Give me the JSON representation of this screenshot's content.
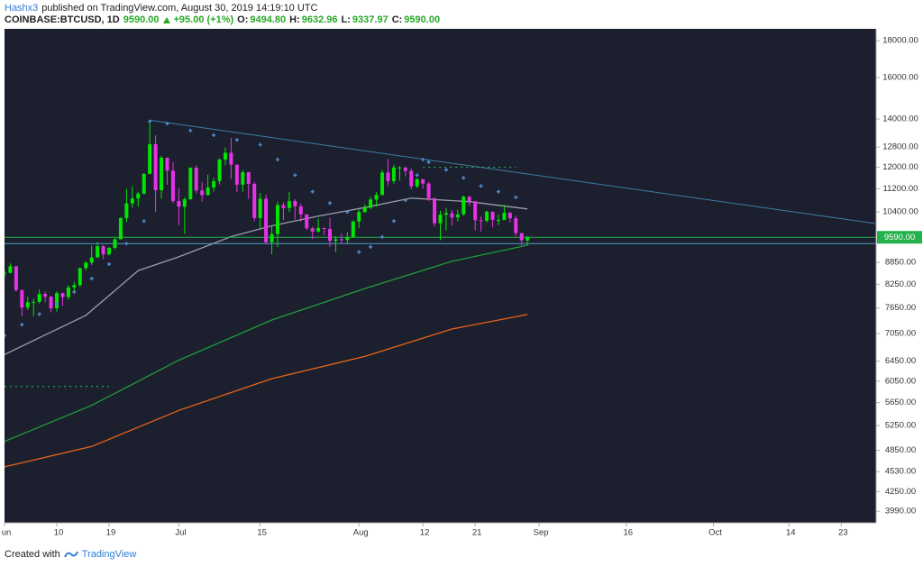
{
  "header": {
    "author": "Hashx3",
    "published": "published on TradingView.com, August 30, 2019 14:19:10 UTC",
    "symbol": "COINBASE:BTCUSD, 1D",
    "last": "9590.00",
    "change": "+95.00 (+1%)",
    "ohlc": [
      {
        "key": "O:",
        "value": "9494.80"
      },
      {
        "key": "H:",
        "value": "9632.96"
      },
      {
        "key": "L:",
        "value": "9337.97"
      },
      {
        "key": "C:",
        "value": "9590.00"
      }
    ]
  },
  "footer": {
    "created": "Created with",
    "brand": "TradingView"
  },
  "chart_data": {
    "type": "candlestick",
    "log_scale": true,
    "grid": false,
    "up_color": "#00e600",
    "down_color": "#e633e6",
    "background": "#1c1f2d",
    "xlim": [
      "2019-06-01",
      "2019-10-29"
    ],
    "ylim": [
      3845,
      18690
    ],
    "yticks": [
      {
        "value": 18000,
        "label": "18000.00"
      },
      {
        "value": 16000,
        "label": "16000.00"
      },
      {
        "value": 14000,
        "label": "14000.00"
      },
      {
        "value": 12800,
        "label": "12800.00"
      },
      {
        "value": 12000,
        "label": "12000.00"
      },
      {
        "value": 11200,
        "label": "11200.00"
      },
      {
        "value": 10400,
        "label": "10400.00"
      },
      {
        "value": 8850,
        "label": "8850.00"
      },
      {
        "value": 8250,
        "label": "8250.00"
      },
      {
        "value": 7650,
        "label": "7650.00"
      },
      {
        "value": 7050,
        "label": "7050.00"
      },
      {
        "value": 6450,
        "label": "6450.00"
      },
      {
        "value": 6050,
        "label": "6050.00"
      },
      {
        "value": 5650,
        "label": "5650.00"
      },
      {
        "value": 5250,
        "label": "5250.00"
      },
      {
        "value": 4850,
        "label": "4850.00"
      },
      {
        "value": 4530,
        "label": "4530.00"
      },
      {
        "value": 4250,
        "label": "4250.00"
      },
      {
        "value": 3990,
        "label": "3990.00"
      }
    ],
    "xticks": [
      {
        "value": "2019-06-01",
        "label": "un"
      },
      {
        "value": "2019-06-10",
        "label": "10"
      },
      {
        "value": "2019-06-19",
        "label": "19"
      },
      {
        "value": "2019-07-01",
        "label": "Jul"
      },
      {
        "value": "2019-07-15",
        "label": "15"
      },
      {
        "value": "2019-08-01",
        "label": "Aug"
      },
      {
        "value": "2019-08-12",
        "label": "12"
      },
      {
        "value": "2019-08-21",
        "label": "21"
      },
      {
        "value": "2019-09-01",
        "label": "Sep"
      },
      {
        "value": "2019-09-16",
        "label": "16"
      },
      {
        "value": "2019-10-01",
        "label": "Oct"
      },
      {
        "value": "2019-10-14",
        "label": "14"
      },
      {
        "value": "2019-10-23",
        "label": "23"
      }
    ],
    "price_line": {
      "value": 9590,
      "label": "9590.00",
      "color": "#22b14c"
    },
    "x": [
      "2019-06-01",
      "2019-06-02",
      "2019-06-03",
      "2019-06-04",
      "2019-06-05",
      "2019-06-06",
      "2019-06-07",
      "2019-06-08",
      "2019-06-09",
      "2019-06-10",
      "2019-06-11",
      "2019-06-12",
      "2019-06-13",
      "2019-06-14",
      "2019-06-15",
      "2019-06-16",
      "2019-06-17",
      "2019-06-18",
      "2019-06-19",
      "2019-06-20",
      "2019-06-21",
      "2019-06-22",
      "2019-06-23",
      "2019-06-24",
      "2019-06-25",
      "2019-06-26",
      "2019-06-27",
      "2019-06-28",
      "2019-06-29",
      "2019-06-30",
      "2019-07-01",
      "2019-07-02",
      "2019-07-03",
      "2019-07-04",
      "2019-07-05",
      "2019-07-06",
      "2019-07-07",
      "2019-07-08",
      "2019-07-09",
      "2019-07-10",
      "2019-07-11",
      "2019-07-12",
      "2019-07-13",
      "2019-07-14",
      "2019-07-15",
      "2019-07-16",
      "2019-07-17",
      "2019-07-18",
      "2019-07-19",
      "2019-07-20",
      "2019-07-21",
      "2019-07-22",
      "2019-07-23",
      "2019-07-24",
      "2019-07-25",
      "2019-07-26",
      "2019-07-27",
      "2019-07-28",
      "2019-07-29",
      "2019-07-30",
      "2019-07-31",
      "2019-08-01",
      "2019-08-02",
      "2019-08-03",
      "2019-08-04",
      "2019-08-05",
      "2019-08-06",
      "2019-08-07",
      "2019-08-08",
      "2019-08-09",
      "2019-08-10",
      "2019-08-11",
      "2019-08-12",
      "2019-08-13",
      "2019-08-14",
      "2019-08-15",
      "2019-08-16",
      "2019-08-17",
      "2019-08-18",
      "2019-08-19",
      "2019-08-20",
      "2019-08-21",
      "2019-08-22",
      "2019-08-23",
      "2019-08-24",
      "2019-08-25",
      "2019-08-26",
      "2019-08-27",
      "2019-08-28",
      "2019-08-29",
      "2019-08-30"
    ],
    "candles": [
      [
        8550,
        8620,
        8450,
        8560
      ],
      [
        8560,
        8820,
        8540,
        8740
      ],
      [
        8740,
        8750,
        8060,
        8100
      ],
      [
        8100,
        8110,
        7450,
        7660
      ],
      [
        7660,
        7930,
        7600,
        7790
      ],
      [
        7790,
        7880,
        7450,
        7800
      ],
      [
        7800,
        8110,
        7760,
        8000
      ],
      [
        8000,
        8060,
        7790,
        7930
      ],
      [
        7930,
        7950,
        7540,
        7640
      ],
      [
        7640,
        8070,
        7560,
        8020
      ],
      [
        8020,
        8030,
        7700,
        7920
      ],
      [
        7920,
        8230,
        7850,
        8170
      ],
      [
        8170,
        8320,
        8050,
        8230
      ],
      [
        8230,
        8700,
        8180,
        8690
      ],
      [
        8690,
        8880,
        8620,
        8840
      ],
      [
        8840,
        9340,
        8780,
        8990
      ],
      [
        8990,
        9450,
        8980,
        9320
      ],
      [
        9320,
        9350,
        8940,
        9080
      ],
      [
        9080,
        9300,
        9050,
        9270
      ],
      [
        9270,
        9600,
        9220,
        9530
      ],
      [
        9530,
        10230,
        9530,
        10200
      ],
      [
        10200,
        11200,
        10060,
        10690
      ],
      [
        10690,
        11300,
        10550,
        10860
      ],
      [
        10860,
        11100,
        10580,
        11030
      ],
      [
        11030,
        11780,
        11000,
        11750
      ],
      [
        11750,
        13880,
        11730,
        12920
      ],
      [
        12920,
        13290,
        10400,
        11150
      ],
      [
        11150,
        12450,
        10850,
        12370
      ],
      [
        12370,
        12380,
        11350,
        11870
      ],
      [
        11870,
        12200,
        10700,
        10770
      ],
      [
        10770,
        11220,
        9970,
        10580
      ],
      [
        10580,
        10900,
        9700,
        10830
      ],
      [
        10830,
        12000,
        10820,
        11980
      ],
      [
        11980,
        12070,
        11040,
        11140
      ],
      [
        11140,
        11450,
        10750,
        10980
      ],
      [
        10980,
        11720,
        10960,
        11250
      ],
      [
        11250,
        11600,
        11100,
        11480
      ],
      [
        11480,
        12350,
        11360,
        12300
      ],
      [
        12300,
        12790,
        12080,
        12570
      ],
      [
        12570,
        13180,
        11560,
        12100
      ],
      [
        12100,
        12100,
        11080,
        11350
      ],
      [
        11350,
        11900,
        11100,
        11810
      ],
      [
        11810,
        11830,
        10850,
        11380
      ],
      [
        11380,
        11450,
        10100,
        10200
      ],
      [
        10200,
        11050,
        9880,
        10850
      ],
      [
        10850,
        11000,
        9370,
        9440
      ],
      [
        9440,
        9950,
        9080,
        9690
      ],
      [
        9690,
        10750,
        9300,
        10630
      ],
      [
        10630,
        10730,
        10130,
        10530
      ],
      [
        10530,
        11080,
        10400,
        10770
      ],
      [
        10770,
        10840,
        10150,
        10590
      ],
      [
        10590,
        10680,
        10080,
        10320
      ],
      [
        10320,
        10330,
        9810,
        9870
      ],
      [
        9870,
        9920,
        9540,
        9770
      ],
      [
        9770,
        10180,
        9740,
        9880
      ],
      [
        9880,
        9890,
        9660,
        9850
      ],
      [
        9850,
        10200,
        9300,
        9480
      ],
      [
        9480,
        9620,
        9150,
        9530
      ],
      [
        9530,
        9720,
        9400,
        9510
      ],
      [
        9510,
        9750,
        9390,
        9590
      ],
      [
        9590,
        10120,
        9580,
        10090
      ],
      [
        10090,
        10480,
        9880,
        10400
      ],
      [
        10400,
        10660,
        10370,
        10540
      ],
      [
        10540,
        10920,
        10500,
        10820
      ],
      [
        10820,
        11090,
        10580,
        10980
      ],
      [
        10980,
        11900,
        10980,
        11800
      ],
      [
        11800,
        12320,
        11300,
        11480
      ],
      [
        11480,
        12100,
        11380,
        11990
      ],
      [
        11990,
        12050,
        11500,
        11990
      ],
      [
        11990,
        12020,
        11650,
        11860
      ],
      [
        11860,
        11950,
        11180,
        11290
      ],
      [
        11290,
        11590,
        11230,
        11550
      ],
      [
        11550,
        11560,
        11210,
        11390
      ],
      [
        11390,
        11450,
        10770,
        10870
      ],
      [
        10870,
        10880,
        9920,
        10030
      ],
      [
        10030,
        10440,
        9500,
        10310
      ],
      [
        10310,
        10530,
        9800,
        10360
      ],
      [
        10360,
        10470,
        9950,
        10220
      ],
      [
        10220,
        10480,
        10090,
        10320
      ],
      [
        10320,
        10960,
        10270,
        10920
      ],
      [
        10920,
        10940,
        10600,
        10760
      ],
      [
        10760,
        10780,
        9800,
        10130
      ],
      [
        10130,
        10250,
        9770,
        10110
      ],
      [
        10110,
        10450,
        10060,
        10410
      ],
      [
        10410,
        10410,
        9900,
        10140
      ],
      [
        10140,
        10320,
        9970,
        10140
      ],
      [
        10140,
        10640,
        10130,
        10370
      ],
      [
        10370,
        10390,
        10060,
        10190
      ],
      [
        10190,
        10280,
        9630,
        9720
      ],
      [
        9720,
        9720,
        9330,
        9495
      ],
      [
        9495,
        9633,
        9338,
        9590
      ]
    ],
    "moving_averages": [
      {
        "color": "#9a9ea8",
        "x": [
          "2019-06-01",
          "2019-06-15",
          "2019-06-24",
          "2019-07-01",
          "2019-07-10",
          "2019-07-17",
          "2019-07-25",
          "2019-08-02",
          "2019-08-10",
          "2019-08-20",
          "2019-08-30"
        ],
        "values": [
          6590,
          7470,
          8620,
          9010,
          9610,
          9950,
          10260,
          10550,
          10870,
          10750,
          10500
        ]
      },
      {
        "color": "#1f9d3a",
        "x": [
          "2019-06-01",
          "2019-06-16",
          "2019-07-01",
          "2019-07-17",
          "2019-08-02",
          "2019-08-17",
          "2019-08-30"
        ],
        "values": [
          4990,
          5600,
          6470,
          7360,
          8140,
          8880,
          9350
        ]
      },
      {
        "color": "#e8651c",
        "x": [
          "2019-06-01",
          "2019-06-16",
          "2019-07-01",
          "2019-07-17",
          "2019-08-02",
          "2019-08-17",
          "2019-08-30"
        ],
        "values": [
          4600,
          4910,
          5510,
          6100,
          6550,
          7150,
          7490
        ]
      }
    ],
    "sar": {
      "color": "#4f86c6",
      "x": [
        "2019-06-01",
        "2019-06-04",
        "2019-06-07",
        "2019-06-10",
        "2019-06-13",
        "2019-06-16",
        "2019-06-19",
        "2019-06-22",
        "2019-06-25",
        "2019-06-26",
        "2019-06-29",
        "2019-07-03",
        "2019-07-07",
        "2019-07-11",
        "2019-07-15",
        "2019-07-18",
        "2019-07-21",
        "2019-07-24",
        "2019-07-27",
        "2019-07-30",
        "2019-08-01",
        "2019-08-03",
        "2019-08-05",
        "2019-08-07",
        "2019-08-09",
        "2019-08-11",
        "2019-08-12",
        "2019-08-13",
        "2019-08-16",
        "2019-08-19",
        "2019-08-22",
        "2019-08-25",
        "2019-08-28"
      ],
      "values": [
        7000,
        7250,
        7500,
        7750,
        8050,
        8400,
        8800,
        9400,
        10100,
        13900,
        13800,
        13500,
        13300,
        13100,
        12900,
        12300,
        11700,
        11100,
        10700,
        10400,
        9150,
        9300,
        9600,
        10100,
        10800,
        11700,
        12300,
        12200,
        11900,
        11600,
        11300,
        11100,
        10900
      ]
    },
    "lines": [
      {
        "color": "#3d7ea6",
        "x": [
          "2019-06-26",
          "2019-10-29"
        ],
        "values": [
          13950,
          10020
        ],
        "dash": "none"
      },
      {
        "color": "#4aa3c8",
        "x": [
          "2019-06-01",
          "2019-10-29"
        ],
        "values": [
          9400,
          9400
        ],
        "dash": "none"
      },
      {
        "color": "#22c55e",
        "x": [
          "2019-08-12",
          "2019-08-28"
        ],
        "values": [
          12000,
          12000
        ],
        "dash": "2 4"
      },
      {
        "color": "#22c55e",
        "x": [
          "2019-06-01",
          "2019-06-19"
        ],
        "values": [
          5950,
          5950
        ],
        "dash": "2 4"
      }
    ]
  }
}
